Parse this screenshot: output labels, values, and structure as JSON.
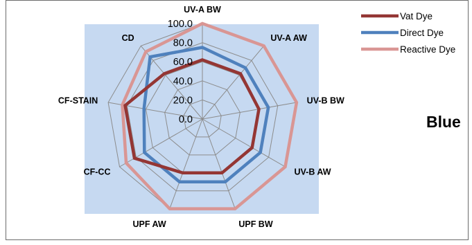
{
  "caption": "Blue",
  "chart_data": {
    "type": "radar",
    "categories": [
      "UV-A  BW",
      "UV-A AW",
      "UV-B  BW",
      "UV-B AW",
      "UPF  BW",
      "UPF AW",
      "CF-CC",
      "CF-STAIN",
      "CD"
    ],
    "ticks": [
      "0.0",
      "20.0",
      "40.0",
      "60.0",
      "80.0",
      "100.0"
    ],
    "range": [
      0,
      100
    ],
    "legend_position": "top-right",
    "series": [
      {
        "name": "Vat Dye",
        "color": "#943634",
        "values": [
          62,
          62,
          60,
          60,
          60,
          60,
          82,
          82,
          62
        ]
      },
      {
        "name": "Direct Dye",
        "color": "#4f81bd",
        "values": [
          75,
          70,
          70,
          70,
          70,
          70,
          70,
          62,
          85
        ]
      },
      {
        "name": "Reactive Dye",
        "color": "#d99694",
        "values": [
          100,
          100,
          100,
          100,
          100,
          100,
          92,
          85,
          92
        ]
      }
    ],
    "plot_background": "#c6d9f1",
    "grid_color": "#8c8c8c"
  }
}
